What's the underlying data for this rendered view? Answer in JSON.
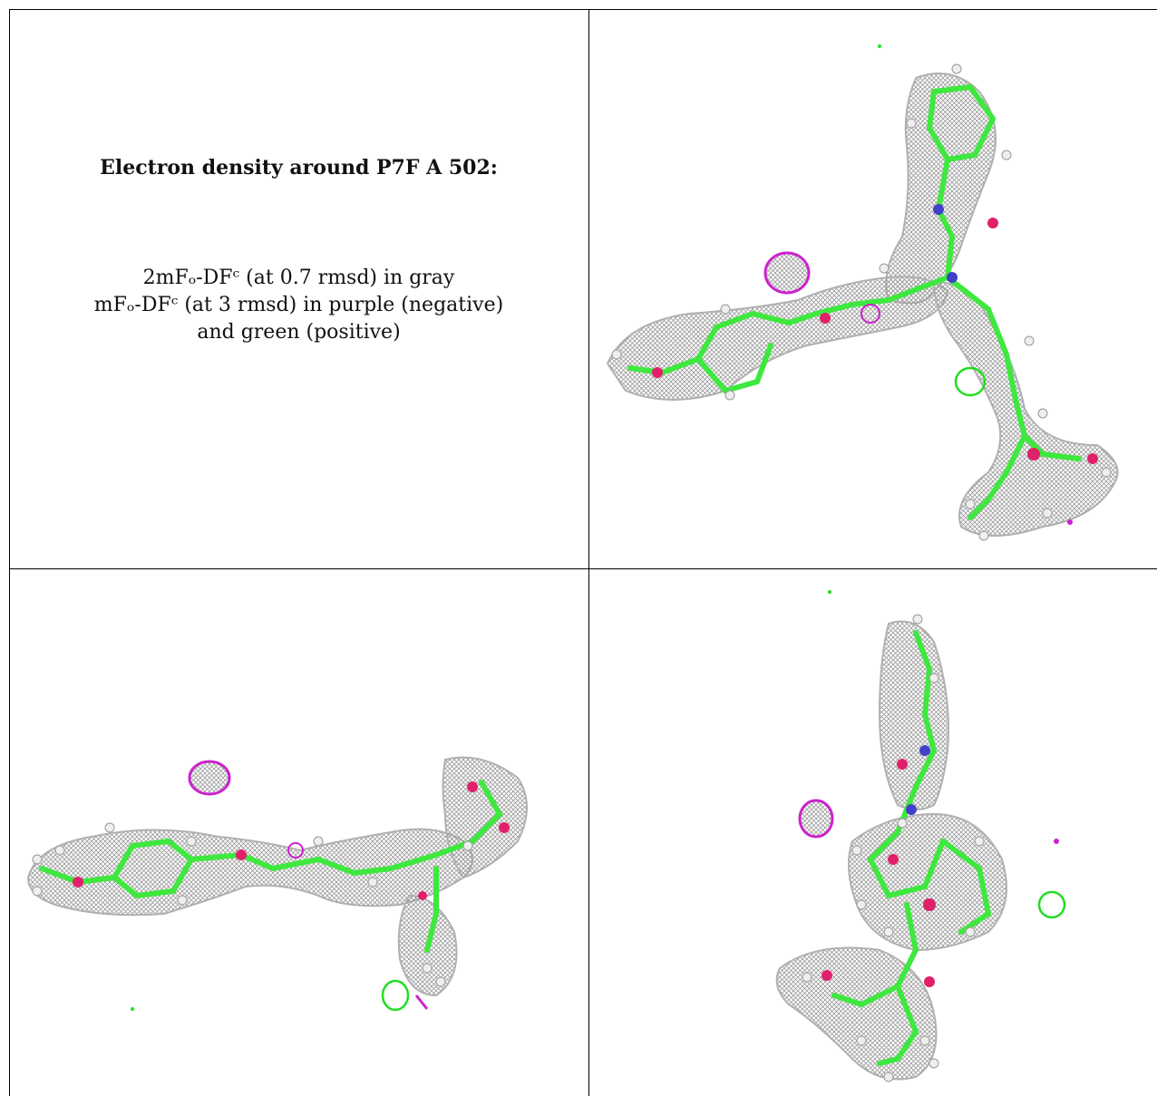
{
  "caption": {
    "title": "Electron density around P7F A 502:",
    "line1": "2mFₒ-DFᶜ (at 0.7 rmsd) in gray",
    "line2": "mFₒ-DFᶜ (at 3 rmsd) in purple (negative)",
    "line3": "and green (positive)"
  },
  "panels": [
    {
      "name": "view-top-right",
      "description_colors": {
        "mesh": "#a8a8a8",
        "carbon": "#3ee83e",
        "oxygen": "#e0206a",
        "nitrogen": "#4040c8",
        "hydrogen": "#e6e6e6",
        "negative": "#cc22cc",
        "positive": "#22dd22"
      }
    },
    {
      "name": "view-bottom-left"
    },
    {
      "name": "view-bottom-right"
    }
  ]
}
